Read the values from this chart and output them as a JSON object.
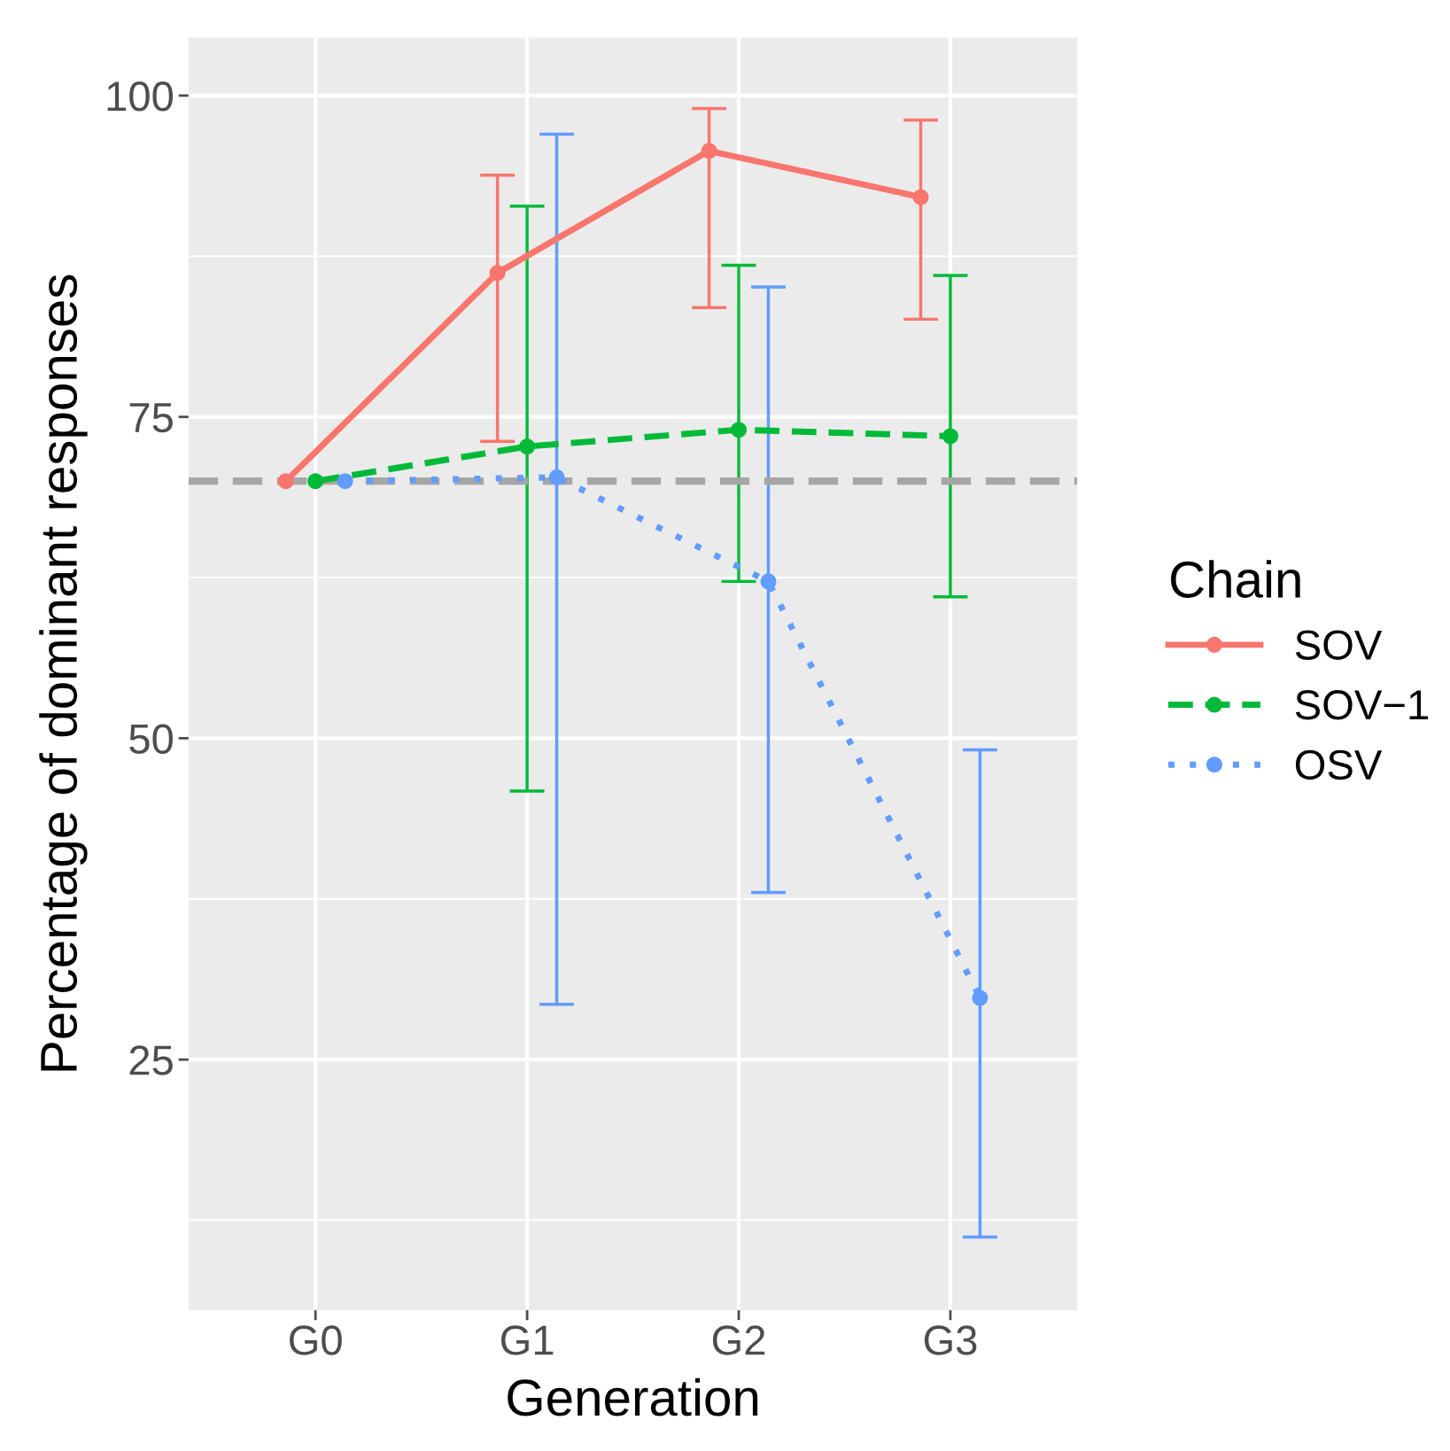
{
  "chart_data": {
    "type": "line",
    "xlabel": "Generation",
    "ylabel": "Percentage of dominant responses",
    "legend_title": "Chain",
    "categories": [
      "G0",
      "G1",
      "G2",
      "G3"
    ],
    "series": [
      {
        "name": "SOV",
        "color": "#f8766d",
        "line_style": "solid",
        "values": [
          70.0,
          86.2,
          95.7,
          92.1
        ],
        "errors": [
          null,
          [
            73.1,
            93.8
          ],
          [
            83.5,
            99.0
          ],
          [
            82.6,
            98.1
          ]
        ]
      },
      {
        "name": "SOV−1",
        "color": "#00ba38",
        "line_style": "dashed",
        "values": [
          70.0,
          72.7,
          74.0,
          73.5
        ],
        "errors": [
          null,
          [
            45.9,
            91.4
          ],
          [
            62.2,
            86.8
          ],
          [
            61.0,
            86.0
          ]
        ]
      },
      {
        "name": "OSV",
        "color": "#619cff",
        "line_style": "dotted",
        "values": [
          70.0,
          70.3,
          62.2,
          29.8
        ],
        "errors": [
          null,
          [
            29.3,
            97.0
          ],
          [
            38.0,
            85.1
          ],
          [
            11.2,
            49.1
          ]
        ]
      }
    ],
    "ylim": [
      5.5,
      104.5
    ],
    "yticks": [
      25,
      50,
      75,
      100
    ],
    "ref_lines": [
      {
        "axis": "y",
        "value": 70,
        "color": "#a6a6a6",
        "line_style": "dashed"
      }
    ],
    "grid": true,
    "legend": "right",
    "marker": "circle"
  }
}
